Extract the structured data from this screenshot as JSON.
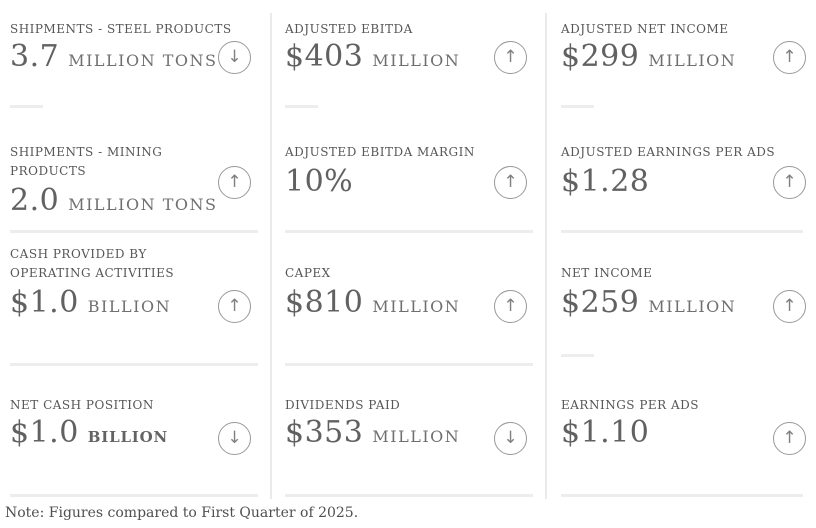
{
  "chart_data": {
    "type": "table",
    "metrics": [
      {
        "label": "SHIPMENTS - STEEL PRODUCTS",
        "value": "3.7",
        "unit": "MILLION TONS",
        "change": "down",
        "glyph": "↓"
      },
      {
        "label": "ADJUSTED EBITDA",
        "value": "$403",
        "unit": "MILLION",
        "change": "up",
        "glyph": "↑"
      },
      {
        "label": "ADJUSTED NET INCOME",
        "value": "$299",
        "unit": "MILLION",
        "change": "up",
        "glyph": "↑"
      },
      {
        "label": "SHIPMENTS - MINING PRODUCTS",
        "value": "2.0",
        "unit": "MILLION TONS",
        "change": "up",
        "glyph": "↑"
      },
      {
        "label": "ADJUSTED EBITDA MARGIN",
        "value": "10%",
        "unit": "",
        "change": "up",
        "glyph": "↑"
      },
      {
        "label": "ADJUSTED EARNINGS PER ADS",
        "value": "$1.28",
        "unit": "",
        "change": "up",
        "glyph": "↑"
      },
      {
        "label": "CASH PROVIDED BY OPERATING ACTIVITIES",
        "value": "$1.0",
        "unit": "BILLION",
        "change": "up",
        "glyph": "↑"
      },
      {
        "label": "CAPEX",
        "value": "$810",
        "unit": "MILLION",
        "change": "up",
        "glyph": "↑"
      },
      {
        "label": "NET INCOME",
        "value": "$259",
        "unit": "MILLION",
        "change": "up",
        "glyph": "↑"
      },
      {
        "label": "NET CASH POSITION",
        "value": "$1.0",
        "unit": "BILLION",
        "change": "down",
        "glyph": "↓"
      },
      {
        "label": "DIVIDENDS PAID",
        "value": "$353",
        "unit": "MILLION",
        "change": "down",
        "glyph": "↓"
      },
      {
        "label": "EARNINGS PER ADS",
        "value": "$1.10",
        "unit": "",
        "change": "up",
        "glyph": "↑"
      }
    ],
    "note": "Note: Figures compared to First Quarter of 2025.",
    "colors": {
      "label_text": "#565656",
      "value_text": "#616161",
      "unit_text": "#6f6f6f",
      "trend_icon": "#808080",
      "divider": "#ededed"
    }
  }
}
